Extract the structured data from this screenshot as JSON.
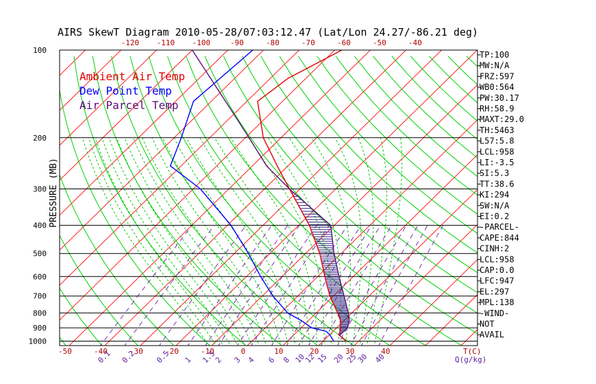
{
  "chart_data": {
    "type": "line",
    "title": "AIRS SkewT Diagram 2010-05-28/07:03:12.47 (Lat/Lon 24.27/-86.21 deg)",
    "ylabel": "PRESSURE (MB)",
    "y_scale": "log",
    "ylim": [
      1050,
      100
    ],
    "y_ticks": [
      100,
      200,
      300,
      400,
      500,
      600,
      700,
      800,
      900,
      1000
    ],
    "x_bottom_ticks": [
      -50,
      -40,
      -30,
      -20,
      -10,
      0,
      10,
      20,
      30,
      40
    ],
    "x_bottom_unit": "T(C)",
    "x_top_ticks": [
      -120,
      -110,
      -100,
      -90,
      -80,
      -70,
      -60,
      -50,
      -40
    ],
    "mixing_ratio_labels": [
      "0.1",
      "0.2",
      "0.5",
      "1",
      "1.5",
      "2",
      "3",
      "4",
      "6",
      "8",
      "10",
      "12",
      "15",
      "20",
      "25",
      "30",
      "40"
    ],
    "mixing_ratio_unit": "Q(g/kg)",
    "legend": [
      {
        "name": "Ambient Air Temp",
        "color": "#e00000"
      },
      {
        "name": "Dew Point Temp",
        "color": "#0000ff"
      },
      {
        "name": "Air Parcel Temp",
        "color": "#5a0f7a"
      }
    ],
    "legend_position": "top-left",
    "series": [
      {
        "name": "Ambient Air Temp",
        "color": "#e00000",
        "points": [
          [
            1000,
            26.5
          ],
          [
            975,
            24.5
          ],
          [
            950,
            22.5
          ],
          [
            925,
            22
          ],
          [
            900,
            21
          ],
          [
            850,
            19
          ],
          [
            800,
            16
          ],
          [
            700,
            9
          ],
          [
            600,
            2
          ],
          [
            500,
            -6
          ],
          [
            400,
            -17
          ],
          [
            300,
            -33
          ],
          [
            250,
            -43
          ],
          [
            200,
            -55
          ],
          [
            150,
            -67
          ],
          [
            125,
            -65
          ],
          [
            100,
            -58
          ]
        ]
      },
      {
        "name": "Dew Point Temp",
        "color": "#0000ff",
        "points": [
          [
            1000,
            23
          ],
          [
            975,
            21.5
          ],
          [
            950,
            20
          ],
          [
            925,
            18
          ],
          [
            900,
            13
          ],
          [
            850,
            8
          ],
          [
            800,
            2
          ],
          [
            700,
            -7
          ],
          [
            600,
            -16
          ],
          [
            500,
            -26
          ],
          [
            400,
            -39
          ],
          [
            300,
            -58
          ],
          [
            250,
            -73
          ],
          [
            200,
            -78
          ],
          [
            150,
            -85
          ],
          [
            100,
            -83
          ]
        ]
      },
      {
        "name": "Air Parcel Temp",
        "color": "#5a0f7a",
        "points": [
          [
            958,
            23
          ],
          [
            900,
            23
          ],
          [
            850,
            21.5
          ],
          [
            800,
            19
          ],
          [
            700,
            13
          ],
          [
            600,
            6
          ],
          [
            500,
            -2
          ],
          [
            400,
            -11
          ],
          [
            300,
            -33
          ],
          [
            250,
            -46
          ],
          [
            200,
            -59
          ],
          [
            150,
            -76
          ],
          [
            100,
            -100
          ]
        ]
      }
    ]
  },
  "indices": [
    "TP:100",
    "MW:N/A",
    "FRZ:597",
    "WB0:564",
    "PW:30.17",
    "RH:58.9",
    "MAXT:29.0",
    "TH:5463",
    "L57:5.8",
    "LCL:958",
    "LI:-3.5",
    "SI:5.3",
    "TT:38.6",
    "KI:294",
    "SW:N/A",
    "EI:0.2",
    "-PARCEL-",
    "CAPE:844",
    "CINH:2",
    "LCL:958",
    "CAP:0.0",
    "LFC:947",
    "EL:297",
    "MPL:138",
    "-WIND-",
    "NOT",
    "AVAIL"
  ],
  "colors": {
    "isotherm": "#ff2020",
    "dry_adiabat": "#00d000",
    "moist_adiabat": "#00c800",
    "mixing_ratio": "#7a2fb0",
    "hatch": "#2a1a7a",
    "axis_text": "#b00000",
    "mixing_text": "#6020a0",
    "text": "#000000"
  }
}
